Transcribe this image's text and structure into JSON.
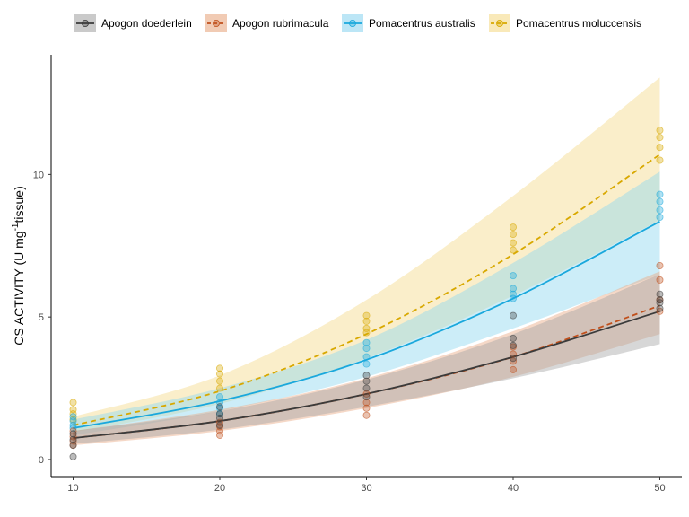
{
  "chart_data": {
    "type": "scatter",
    "xlabel": "",
    "ylabel": {
      "prefix": "CS ACTIVITY (U mg",
      "superscript": "-1",
      "suffix": "tissue)"
    },
    "xlim": [
      8.5,
      51.5
    ],
    "ylim": [
      -0.6,
      14.2
    ],
    "x_ticks": [
      10,
      20,
      30,
      40,
      50
    ],
    "y_ticks": [
      0,
      5,
      10
    ],
    "legend_position": "top",
    "grid": false,
    "series": [
      {
        "name": "Apogon doederlein",
        "color": "#3b3b3b",
        "band_color": "#a6a6a6",
        "line_style": "solid",
        "curve_x": [
          10,
          20,
          30,
          40,
          50
        ],
        "curve_y": [
          0.75,
          1.35,
          2.3,
          3.6,
          5.2
        ],
        "band_lower": [
          0.55,
          1.05,
          1.85,
          2.85,
          4.05
        ],
        "band_upper": [
          1.0,
          1.7,
          2.8,
          4.4,
          6.5
        ],
        "points": [
          [
            10,
            0.1
          ],
          [
            10,
            0.5
          ],
          [
            10,
            0.7
          ],
          [
            10,
            0.9
          ],
          [
            20,
            1.2
          ],
          [
            20,
            1.45
          ],
          [
            20,
            1.6
          ],
          [
            20,
            1.85
          ],
          [
            30,
            2.2
          ],
          [
            30,
            2.5
          ],
          [
            30,
            2.75
          ],
          [
            30,
            2.95
          ],
          [
            40,
            3.55
          ],
          [
            40,
            4.0
          ],
          [
            40,
            4.25
          ],
          [
            40,
            5.05
          ],
          [
            50,
            5.3
          ],
          [
            50,
            5.5
          ],
          [
            50,
            5.6
          ],
          [
            50,
            5.8
          ]
        ]
      },
      {
        "name": "Apogon rubrimacula",
        "color": "#c0501c",
        "band_color": "#e8a982",
        "line_style": "dashed",
        "curve_x": [
          10,
          20,
          30,
          40,
          50
        ],
        "curve_y": [
          0.75,
          1.35,
          2.3,
          3.6,
          5.4
        ],
        "band_lower": [
          0.5,
          1.0,
          1.8,
          2.9,
          4.4
        ],
        "band_upper": [
          1.0,
          1.75,
          2.85,
          4.5,
          6.6
        ],
        "points": [
          [
            10,
            0.5
          ],
          [
            10,
            0.65
          ],
          [
            10,
            0.8
          ],
          [
            10,
            1.0
          ],
          [
            20,
            0.85
          ],
          [
            20,
            1.0
          ],
          [
            20,
            1.15
          ],
          [
            20,
            1.3
          ],
          [
            30,
            1.55
          ],
          [
            30,
            1.8
          ],
          [
            30,
            2.0
          ],
          [
            30,
            2.3
          ],
          [
            40,
            3.15
          ],
          [
            40,
            3.45
          ],
          [
            40,
            3.7
          ],
          [
            40,
            3.95
          ],
          [
            50,
            5.2
          ],
          [
            50,
            5.6
          ],
          [
            50,
            6.3
          ],
          [
            50,
            6.8
          ]
        ]
      },
      {
        "name": "Pomacentrus australis",
        "color": "#1aa8dc",
        "band_color": "#8fd6f0",
        "line_style": "solid",
        "curve_x": [
          10,
          20,
          30,
          40,
          50
        ],
        "curve_y": [
          1.1,
          2.05,
          3.5,
          5.65,
          8.35
        ],
        "band_lower": [
          0.85,
          1.7,
          2.9,
          4.6,
          6.5
        ],
        "band_upper": [
          1.4,
          2.5,
          4.2,
          6.9,
          10.1
        ],
        "points": [
          [
            10,
            1.1
          ],
          [
            10,
            1.2
          ],
          [
            10,
            1.35
          ],
          [
            10,
            1.5
          ],
          [
            20,
            1.6
          ],
          [
            20,
            1.8
          ],
          [
            20,
            2.0
          ],
          [
            20,
            2.2
          ],
          [
            30,
            3.35
          ],
          [
            30,
            3.6
          ],
          [
            30,
            3.9
          ],
          [
            30,
            4.1
          ],
          [
            40,
            5.65
          ],
          [
            40,
            5.8
          ],
          [
            40,
            6.0
          ],
          [
            40,
            6.45
          ],
          [
            50,
            8.5
          ],
          [
            50,
            8.75
          ],
          [
            50,
            9.05
          ],
          [
            50,
            9.3
          ]
        ]
      },
      {
        "name": "Pomacentrus moluccensis",
        "color": "#d8a800",
        "band_color": "#f5da8a",
        "line_style": "dashed",
        "curve_x": [
          10,
          20,
          30,
          40,
          50
        ],
        "curve_y": [
          1.2,
          2.4,
          4.4,
          7.2,
          10.7
        ],
        "band_lower": [
          0.95,
          1.95,
          3.55,
          5.75,
          8.4
        ],
        "band_upper": [
          1.5,
          2.95,
          5.6,
          9.25,
          13.4
        ],
        "points": [
          [
            10,
            1.4
          ],
          [
            10,
            1.6
          ],
          [
            10,
            1.75
          ],
          [
            10,
            2.0
          ],
          [
            20,
            2.5
          ],
          [
            20,
            2.75
          ],
          [
            20,
            3.0
          ],
          [
            20,
            3.2
          ],
          [
            30,
            4.45
          ],
          [
            30,
            4.6
          ],
          [
            30,
            4.85
          ],
          [
            30,
            5.05
          ],
          [
            40,
            7.35
          ],
          [
            40,
            7.6
          ],
          [
            40,
            7.9
          ],
          [
            40,
            8.15
          ],
          [
            50,
            10.5
          ],
          [
            50,
            10.95
          ],
          [
            50,
            11.3
          ],
          [
            50,
            11.55
          ]
        ]
      }
    ]
  }
}
